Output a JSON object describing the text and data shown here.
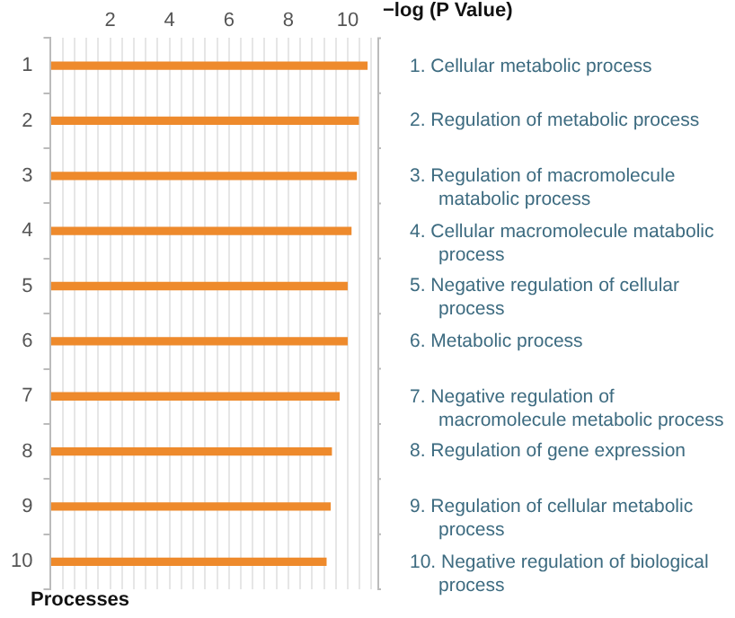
{
  "chart_data": {
    "type": "bar",
    "orientation": "horizontal",
    "xlabel": "−log (P Value)",
    "ylabel": "Processes",
    "categories": [
      "1",
      "2",
      "3",
      "4",
      "5",
      "6",
      "7",
      "8",
      "9",
      "10"
    ],
    "values": [
      10.65,
      10.36,
      10.29,
      10.11,
      9.98,
      9.98,
      9.71,
      9.45,
      9.41,
      9.27
    ],
    "color": "#ee8a2c",
    "xlim": [
      0,
      11
    ],
    "xticks": [
      {
        "value": 0,
        "label": null
      },
      {
        "value": 0.4,
        "label": null
      },
      {
        "value": 0.8,
        "label": null
      },
      {
        "value": 1.2,
        "label": null
      },
      {
        "value": 1.6,
        "label": null
      },
      2,
      {
        "value": 2.4,
        "label": null
      },
      {
        "value": 2.8,
        "label": null
      },
      {
        "value": 3.2,
        "label": null
      },
      {
        "value": 3.6,
        "label": null
      },
      4,
      {
        "value": 4.4,
        "label": null
      },
      {
        "value": 4.8,
        "label": null
      },
      {
        "value": 5.2,
        "label": null
      },
      {
        "value": 5.6,
        "label": null
      },
      6,
      {
        "value": 6.4,
        "label": null
      },
      {
        "value": 6.8,
        "label": null
      },
      {
        "value": 7.2,
        "label": null
      },
      {
        "value": 7.6,
        "label": null
      },
      8,
      {
        "value": 8.4,
        "label": null
      },
      {
        "value": 8.8,
        "label": null
      },
      {
        "value": 9.2,
        "label": null
      },
      {
        "value": 9.6,
        "label": null
      },
      10,
      {
        "value": 10.4,
        "label": null
      },
      {
        "value": 10.8,
        "label": null
      }
    ],
    "grid": "x",
    "annotations": [
      "1. Cellular metabolic process",
      "2. Regulation of metabolic process",
      "3. Regulation of macromolecule matabolic process",
      "4. Cellular macromolecule matabolic process",
      "5. Negative regulation of cellular process",
      "6. Metabolic process",
      "7. Negative regulation of macromolecule metabolic process",
      "8. Regulation of gene expression",
      "9. Regulation of cellular metabolic process",
      "10. Negative regulation of biological process"
    ]
  }
}
